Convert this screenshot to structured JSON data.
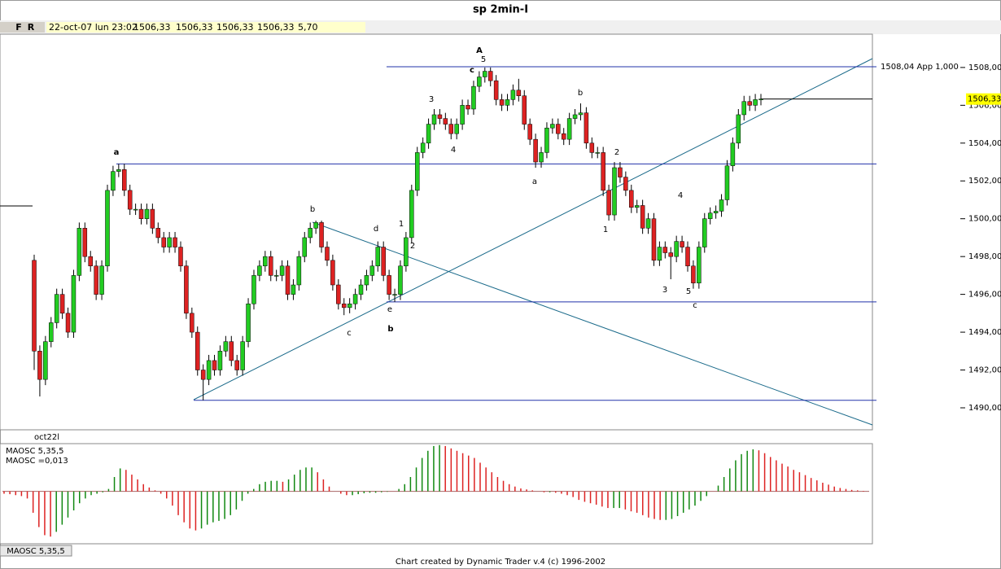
{
  "toolbar": {
    "buttons": [
      "F",
      "R"
    ],
    "fields": [
      "22-oct-07 lun 23:02",
      "1506,33",
      "1506,33",
      "1506,33",
      "1506,33",
      "5,70"
    ]
  },
  "chart_data": [
    {
      "type": "candlestick",
      "title": "sp 2min-I",
      "x_label": "oct22l",
      "up_color": "#22cc22",
      "down_color": "#dd2222",
      "open": [
        1497.8,
        1493,
        1491.5,
        1493.5,
        1494.5,
        1496,
        1495,
        1494,
        1497,
        1499.5,
        1498,
        1497.5,
        1496,
        1497.5,
        1501.5,
        1502.5,
        1502.6,
        1501.5,
        1500.5,
        1500.5,
        1500,
        1500.5,
        1499.5,
        1499,
        1498.5,
        1499,
        1498.5,
        1497.5,
        1495,
        1494,
        1492,
        1491.5,
        1492.5,
        1492,
        1493,
        1493.5,
        1492.5,
        1492,
        1493.5,
        1495.5,
        1497,
        1497.5,
        1498,
        1497,
        1497,
        1497.5,
        1496,
        1496.5,
        1498,
        1499,
        1499.5,
        1499.8,
        1498.5,
        1497.8,
        1496.5,
        1495.5,
        1495.3,
        1495.5,
        1496,
        1496.5,
        1497,
        1497.5,
        1498.5,
        1497,
        1496,
        1496,
        1497.5,
        1499,
        1501.5,
        1503.5,
        1504,
        1505,
        1505.5,
        1505.3,
        1505,
        1504.5,
        1505,
        1506,
        1505.8,
        1507,
        1507.5,
        1507.8,
        1507.3,
        1506.3,
        1506,
        1506.3,
        1506.8,
        1506.5,
        1505,
        1504.2,
        1503,
        1503.5,
        1504.8,
        1505,
        1504.5,
        1504.2,
        1505.3,
        1505.5,
        1505.6,
        1504,
        1503.5,
        1503.5,
        1501.5,
        1500.2,
        1502.7,
        1502.2,
        1501.5,
        1500.6,
        1500.7,
        1499.5,
        1500,
        1497.8,
        1498.5,
        1498.2,
        1498,
        1498.8,
        1498.5,
        1497.5,
        1496.6,
        1498.5,
        1500,
        1500.3,
        1500.4,
        1501,
        1502.8,
        1504,
        1505.5,
        1506.2,
        1506,
        1506.3
      ],
      "high": [
        1498.1,
        1493.3,
        1493.8,
        1494.8,
        1496.3,
        1496.3,
        1495.3,
        1497.3,
        1499.8,
        1499.8,
        1498.3,
        1497.8,
        1497.8,
        1501.8,
        1502.8,
        1502.9,
        1502.9,
        1501.8,
        1500.8,
        1500.8,
        1500.8,
        1500.8,
        1499.8,
        1499.3,
        1499.3,
        1499.3,
        1498.8,
        1497.8,
        1495.3,
        1494.3,
        1492.3,
        1492.8,
        1492.8,
        1493.3,
        1493.8,
        1493.8,
        1492.8,
        1493.8,
        1495.8,
        1497.3,
        1497.8,
        1498.3,
        1498.3,
        1497.3,
        1497.8,
        1497.8,
        1496.8,
        1498.3,
        1499.3,
        1499.8,
        1499.9,
        1499.9,
        1498.8,
        1498.1,
        1496.8,
        1495.8,
        1495.8,
        1496.3,
        1496.8,
        1497.3,
        1497.8,
        1498.8,
        1498.8,
        1497.3,
        1496.3,
        1497.8,
        1499.3,
        1501.8,
        1503.8,
        1504.3,
        1505.3,
        1505.8,
        1505.8,
        1505.6,
        1505.3,
        1505.3,
        1506.3,
        1506.3,
        1507.3,
        1507.8,
        1508,
        1508,
        1507.6,
        1506.6,
        1506.6,
        1507.1,
        1507.4,
        1506.8,
        1505.3,
        1504.5,
        1503.8,
        1505.1,
        1505.3,
        1505.3,
        1504.8,
        1505.6,
        1505.8,
        1506.1,
        1505.9,
        1504.3,
        1503.8,
        1503.8,
        1501.8,
        1503,
        1503,
        1502.5,
        1501.8,
        1501,
        1501,
        1500.3,
        1500.3,
        1498.8,
        1498.8,
        1498.5,
        1499.1,
        1499.1,
        1498.8,
        1497.8,
        1498.8,
        1500.3,
        1500.6,
        1500.7,
        1501.3,
        1503.1,
        1504.3,
        1505.8,
        1506.5,
        1506.5,
        1506.6,
        1506.6
      ],
      "low": [
        1492,
        1490.6,
        1491.2,
        1493.2,
        1494.2,
        1494.7,
        1493.7,
        1493.7,
        1496.7,
        1497.7,
        1497.2,
        1495.7,
        1495.7,
        1497.2,
        1501.2,
        1502.2,
        1501.2,
        1500.2,
        1500.2,
        1499.7,
        1499.7,
        1499.2,
        1498.7,
        1498.2,
        1498.2,
        1498.2,
        1497.2,
        1494.7,
        1493.7,
        1491.7,
        1490.4,
        1491.2,
        1491.7,
        1491.7,
        1492.7,
        1492.2,
        1491.7,
        1491.7,
        1493.2,
        1495.2,
        1496.7,
        1497.2,
        1496.7,
        1496.7,
        1496.7,
        1495.7,
        1495.7,
        1496.2,
        1497.7,
        1498.7,
        1499.2,
        1498.2,
        1497.5,
        1496.2,
        1495.2,
        1494.9,
        1495,
        1495.2,
        1495.7,
        1496.2,
        1496.7,
        1497.2,
        1496.7,
        1495.7,
        1495.6,
        1495.7,
        1497.2,
        1498.7,
        1501.2,
        1503.2,
        1503.7,
        1504.7,
        1505,
        1504.7,
        1504.2,
        1504.2,
        1504.7,
        1505.5,
        1505.5,
        1506.7,
        1507.2,
        1507,
        1506,
        1505.7,
        1505.7,
        1506,
        1506.2,
        1504.7,
        1503.9,
        1502.7,
        1502.7,
        1503.2,
        1504.5,
        1504.2,
        1503.9,
        1503.9,
        1505,
        1505.2,
        1503.7,
        1503.2,
        1503.2,
        1501.2,
        1499.9,
        1499.9,
        1501.9,
        1501.2,
        1500.3,
        1500.3,
        1499.2,
        1499.2,
        1497.5,
        1497.5,
        1497.9,
        1496.8,
        1497.7,
        1498.2,
        1497.2,
        1496.3,
        1496.3,
        1498.2,
        1499.7,
        1500,
        1500.1,
        1500.7,
        1502.5,
        1503.7,
        1505.2,
        1505.7,
        1505.7,
        1506
      ],
      "close": [
        1493,
        1491.5,
        1493.5,
        1494.5,
        1496,
        1495,
        1494,
        1497,
        1499.5,
        1498,
        1497.5,
        1496,
        1497.5,
        1501.5,
        1502.5,
        1502.6,
        1501.5,
        1500.5,
        1500.5,
        1500,
        1500.5,
        1499.5,
        1499,
        1498.5,
        1499,
        1498.5,
        1497.5,
        1495,
        1494,
        1492,
        1491.5,
        1492.5,
        1492,
        1493,
        1493.5,
        1492.5,
        1492,
        1493.5,
        1495.5,
        1497,
        1497.5,
        1498,
        1497,
        1497,
        1497.5,
        1496,
        1496.5,
        1498,
        1499,
        1499.5,
        1499.8,
        1498.5,
        1497.8,
        1496.5,
        1495.5,
        1495.3,
        1495.5,
        1496,
        1496.5,
        1497,
        1497.5,
        1498.5,
        1497,
        1496,
        1496,
        1497.5,
        1499,
        1501.5,
        1503.5,
        1504,
        1505,
        1505.5,
        1505.3,
        1505,
        1504.5,
        1505,
        1506,
        1505.8,
        1507,
        1507.5,
        1507.8,
        1507.3,
        1506.3,
        1506,
        1506.3,
        1506.8,
        1506.5,
        1505,
        1504.2,
        1503,
        1503.5,
        1504.8,
        1505,
        1504.5,
        1504.2,
        1505.3,
        1505.5,
        1505.6,
        1504,
        1503.5,
        1503.5,
        1501.5,
        1500.2,
        1502.7,
        1502.2,
        1501.5,
        1500.6,
        1500.7,
        1499.5,
        1500,
        1497.8,
        1498.5,
        1498.2,
        1498,
        1498.8,
        1498.5,
        1497.5,
        1496.6,
        1498.5,
        1500,
        1500.3,
        1500.4,
        1501,
        1502.8,
        1504,
        1505.5,
        1506.2,
        1506,
        1506.3,
        1506.33
      ],
      "ylim": [
        1488.88,
        1509.76
      ],
      "yticks": [
        {
          "value": 1490,
          "label": "1490,00"
        },
        {
          "value": 1492,
          "label": "1492,00"
        },
        {
          "value": 1494,
          "label": "1494,00"
        },
        {
          "value": 1496,
          "label": "1496,00"
        },
        {
          "value": 1498,
          "label": "1498,00"
        },
        {
          "value": 1500,
          "label": "1500,00"
        },
        {
          "value": 1502,
          "label": "1502,00"
        },
        {
          "value": 1504,
          "label": "1504,00"
        },
        {
          "value": 1506,
          "label": "1506,00"
        },
        {
          "value": 1508,
          "label": "1508,00"
        }
      ],
      "target_level": {
        "value": 1508.04,
        "label": "1508,04 App 1,000"
      },
      "last_price": {
        "value": 1506.33,
        "label": "1506,33"
      },
      "reference_lines": [
        1502.9,
        1495.6,
        1490.4
      ],
      "wave_labels": [
        "a",
        "b",
        "c",
        "d",
        "e",
        "b",
        "1",
        "2",
        "3",
        "4",
        "A",
        "5",
        "c",
        "a",
        "b",
        "2",
        "1",
        "4",
        "3",
        "5",
        "c"
      ]
    },
    {
      "type": "histogram-oscillator",
      "name": "MAOSC 5,35,5",
      "readout": "MAOSC =0,013",
      "tab": "MAOSC 5,35,5",
      "up_color": "#118811",
      "down_color": "#dd2222",
      "ylim": [
        -1.1,
        1.0
      ],
      "values": [
        -0.05,
        -0.06,
        -0.08,
        -0.1,
        -0.15,
        -0.45,
        -0.75,
        -0.92,
        -0.95,
        -0.85,
        -0.7,
        -0.55,
        -0.4,
        -0.25,
        -0.15,
        -0.08,
        -0.05,
        -0.02,
        0.05,
        0.3,
        0.48,
        0.45,
        0.35,
        0.25,
        0.15,
        0.08,
        0.02,
        -0.05,
        -0.15,
        -0.3,
        -0.5,
        -0.65,
        -0.78,
        -0.82,
        -0.78,
        -0.7,
        -0.65,
        -0.62,
        -0.58,
        -0.5,
        -0.38,
        -0.2,
        -0.05,
        0.05,
        0.15,
        0.2,
        0.22,
        0.22,
        0.2,
        0.25,
        0.35,
        0.45,
        0.5,
        0.5,
        0.4,
        0.25,
        0.1,
        0.0,
        -0.05,
        -0.08,
        -0.08,
        -0.06,
        -0.04,
        -0.03,
        -0.03,
        -0.02,
        -0.01,
        0.0,
        0.05,
        0.15,
        0.3,
        0.5,
        0.7,
        0.85,
        0.95,
        0.97,
        0.95,
        0.9,
        0.85,
        0.8,
        0.75,
        0.7,
        0.6,
        0.5,
        0.4,
        0.3,
        0.22,
        0.15,
        0.1,
        0.06,
        0.04,
        0.02,
        0.0,
        -0.02,
        -0.02,
        -0.03,
        -0.05,
        -0.08,
        -0.12,
        -0.18,
        -0.22,
        -0.25,
        -0.28,
        -0.32,
        -0.35,
        -0.35,
        -0.35,
        -0.38,
        -0.42,
        -0.45,
        -0.5,
        -0.55,
        -0.58,
        -0.6,
        -0.6,
        -0.58,
        -0.52,
        -0.45,
        -0.38,
        -0.3,
        -0.2,
        -0.1,
        0.0,
        0.12,
        0.3,
        0.48,
        0.65,
        0.78,
        0.85,
        0.88,
        0.86,
        0.8,
        0.72,
        0.65,
        0.58,
        0.52,
        0.45,
        0.4,
        0.34,
        0.28,
        0.23,
        0.18,
        0.14,
        0.1,
        0.07,
        0.05,
        0.03,
        0.02,
        0.01,
        0.0
      ]
    }
  ],
  "footer": "Chart created by Dynamic Trader v.4  (c) 1996-2002"
}
